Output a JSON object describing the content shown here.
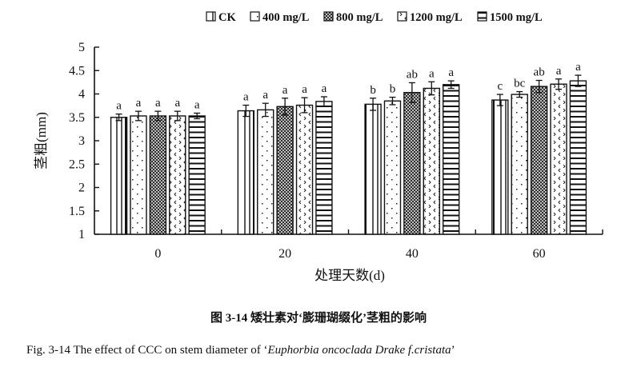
{
  "chart_data": {
    "type": "bar",
    "xlabel": "处理天数(d)",
    "ylabel": "茎粗(mm)",
    "ylim": [
      1,
      5
    ],
    "yticks": [
      "1",
      "1.5",
      "2",
      "2.5",
      "3",
      "3.5",
      "4",
      "4.5",
      "5"
    ],
    "categories": [
      "0",
      "20",
      "40",
      "60"
    ],
    "grid": false,
    "legend_position": "top-right",
    "series": [
      {
        "name": "CK",
        "pattern": "vertical-lines",
        "values": [
          3.5,
          3.64,
          3.78,
          3.87
        ],
        "errors": [
          0.07,
          0.12,
          0.13,
          0.12
        ],
        "letters": [
          "a",
          "a",
          "b",
          "c"
        ]
      },
      {
        "name": "400 mg/L",
        "pattern": "dots",
        "values": [
          3.53,
          3.66,
          3.85,
          3.99
        ],
        "errors": [
          0.1,
          0.14,
          0.08,
          0.06
        ],
        "letters": [
          "a",
          "a",
          "b",
          "bc"
        ]
      },
      {
        "name": "800 mg/L",
        "pattern": "crosshatch",
        "values": [
          3.53,
          3.73,
          4.03,
          4.16
        ],
        "errors": [
          0.1,
          0.18,
          0.21,
          0.13
        ],
        "letters": [
          "a",
          "a",
          "ab",
          "ab"
        ]
      },
      {
        "name": "1200 mg/L",
        "pattern": "chevrons",
        "values": [
          3.53,
          3.76,
          4.12,
          4.21
        ],
        "errors": [
          0.1,
          0.16,
          0.14,
          0.11
        ],
        "letters": [
          "a",
          "a",
          "a",
          "a"
        ]
      },
      {
        "name": "1500 mg/L",
        "pattern": "horizontal-lines",
        "values": [
          3.53,
          3.84,
          4.2,
          4.28
        ],
        "errors": [
          0.06,
          0.1,
          0.08,
          0.12
        ],
        "letters": [
          "a",
          "a",
          "a",
          "a"
        ]
      }
    ]
  },
  "caption": {
    "chinese": "图 3-14  矮壮素对‘膨珊瑚缀化’茎粗的影响",
    "english_prefix": "Fig. 3-14 The effect of CCC on stem diameter of ‘",
    "english_species": "Euphorbia oncoclada Drake f.cristata",
    "english_suffix": "’"
  }
}
